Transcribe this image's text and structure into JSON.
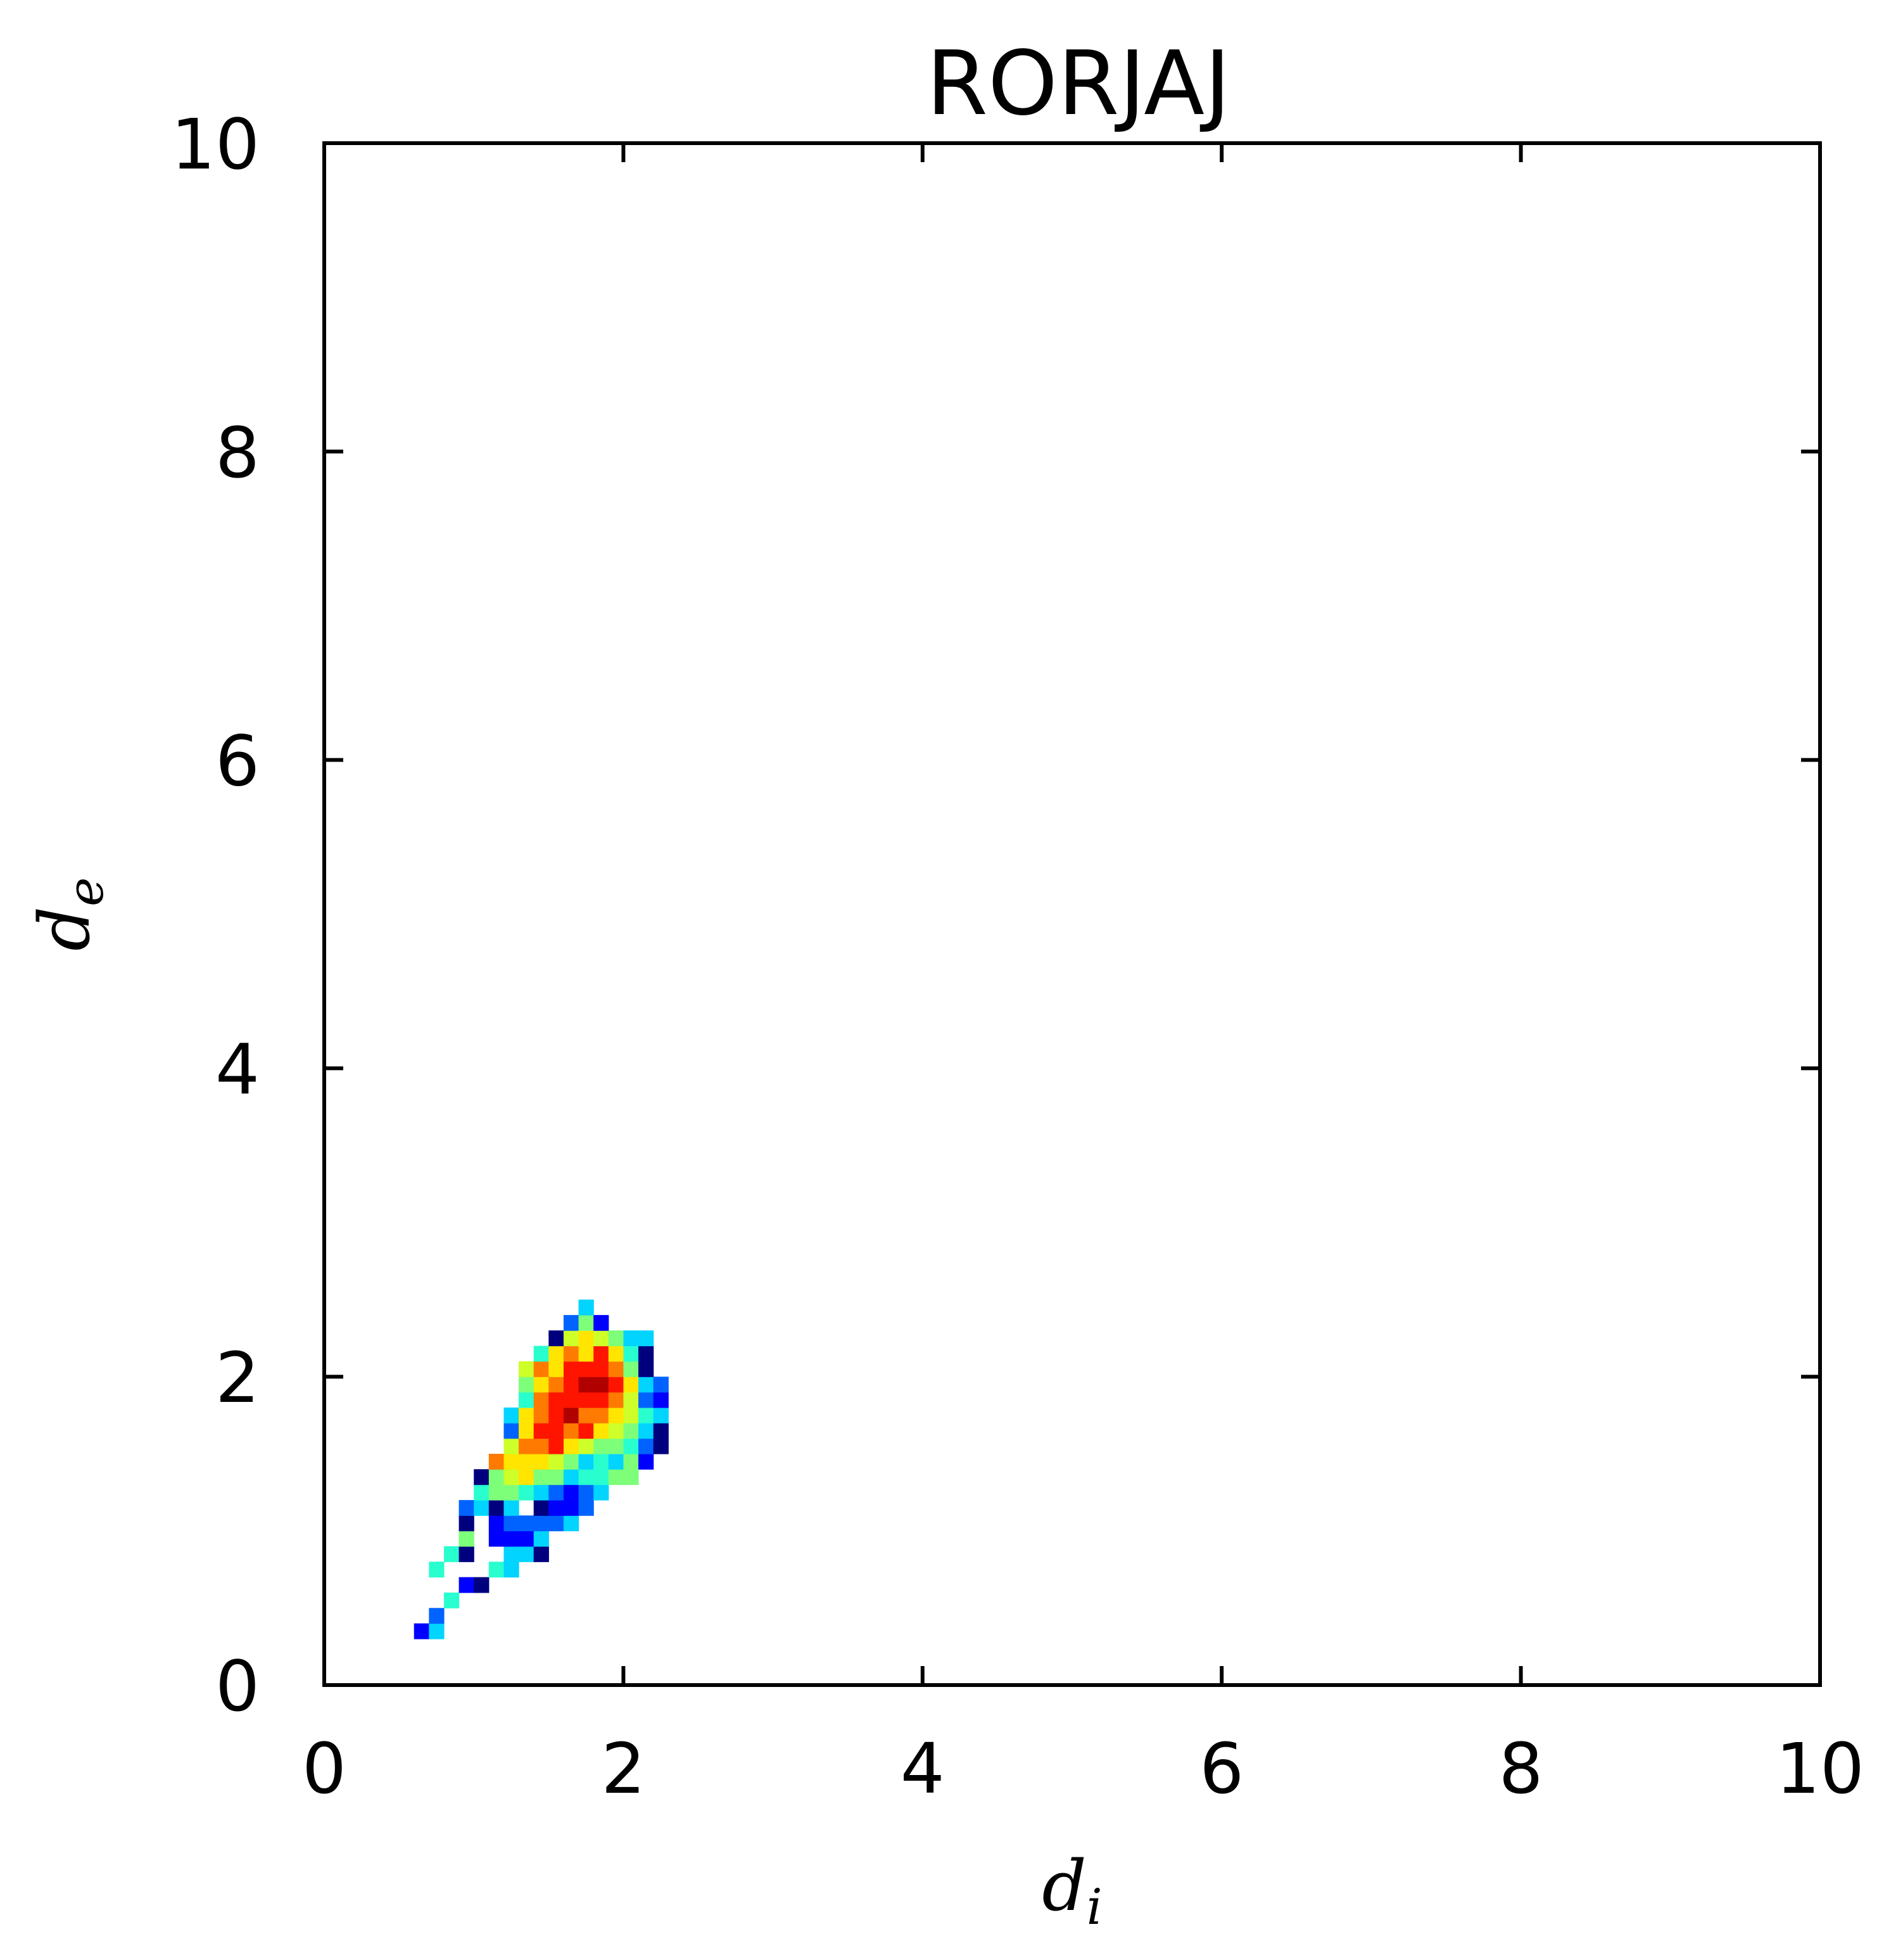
{
  "chart_data": {
    "type": "heatmap",
    "title": "RORJAJ",
    "xlabel": "d",
    "xlabel_sub": "i",
    "ylabel": "d",
    "ylabel_sub": "e",
    "xlim": [
      0,
      10
    ],
    "ylim": [
      0,
      10
    ],
    "xticks": [
      "0",
      "2",
      "4",
      "6",
      "8",
      "10"
    ],
    "yticks": [
      "0",
      "2",
      "4",
      "6",
      "8",
      "10"
    ],
    "grid": false,
    "colormap": "jet",
    "bin_size": 0.1,
    "colors": {
      "1": "#00007f",
      "2": "#0000ff",
      "3": "#0063ff",
      "4": "#00d4ff",
      "5": "#29ffce",
      "6": "#7dff7a",
      "7": "#ceff29",
      "8": "#ffe500",
      "9": "#ff7a00",
      "10": "#ff1400",
      "11": "#b00000"
    },
    "cells": [
      [
        0.6,
        0.3,
        2
      ],
      [
        0.7,
        0.3,
        4
      ],
      [
        0.7,
        0.4,
        3
      ],
      [
        0.8,
        0.5,
        5
      ],
      [
        0.9,
        0.6,
        2
      ],
      [
        1.0,
        0.6,
        1
      ],
      [
        0.7,
        0.7,
        5
      ],
      [
        1.1,
        0.7,
        5
      ],
      [
        1.2,
        0.7,
        4
      ],
      [
        0.8,
        0.8,
        5
      ],
      [
        0.9,
        0.8,
        1
      ],
      [
        1.2,
        0.8,
        4
      ],
      [
        1.3,
        0.8,
        4
      ],
      [
        1.4,
        0.8,
        1
      ],
      [
        0.9,
        0.9,
        6
      ],
      [
        1.1,
        0.9,
        2
      ],
      [
        1.2,
        0.9,
        2
      ],
      [
        1.3,
        0.9,
        2
      ],
      [
        1.4,
        0.9,
        4
      ],
      [
        0.9,
        1.0,
        1
      ],
      [
        1.1,
        1.0,
        2
      ],
      [
        1.2,
        1.0,
        3
      ],
      [
        1.3,
        1.0,
        3
      ],
      [
        1.4,
        1.0,
        3
      ],
      [
        1.5,
        1.0,
        3
      ],
      [
        1.6,
        1.0,
        4
      ],
      [
        0.9,
        1.1,
        3
      ],
      [
        1.0,
        1.1,
        4
      ],
      [
        1.1,
        1.1,
        1
      ],
      [
        1.2,
        1.1,
        4
      ],
      [
        1.4,
        1.1,
        1
      ],
      [
        1.5,
        1.1,
        2
      ],
      [
        1.6,
        1.1,
        2
      ],
      [
        1.7,
        1.1,
        3
      ],
      [
        1.0,
        1.2,
        5
      ],
      [
        1.1,
        1.2,
        6
      ],
      [
        1.2,
        1.2,
        6
      ],
      [
        1.3,
        1.2,
        5
      ],
      [
        1.4,
        1.2,
        4
      ],
      [
        1.5,
        1.2,
        3
      ],
      [
        1.6,
        1.2,
        2
      ],
      [
        1.7,
        1.2,
        3
      ],
      [
        1.8,
        1.2,
        4
      ],
      [
        1.0,
        1.3,
        1
      ],
      [
        1.1,
        1.3,
        6
      ],
      [
        1.2,
        1.3,
        7
      ],
      [
        1.3,
        1.3,
        8
      ],
      [
        1.4,
        1.3,
        6
      ],
      [
        1.5,
        1.3,
        6
      ],
      [
        1.6,
        1.3,
        4
      ],
      [
        1.7,
        1.3,
        5
      ],
      [
        1.8,
        1.3,
        5
      ],
      [
        1.9,
        1.3,
        6
      ],
      [
        2.0,
        1.3,
        6
      ],
      [
        1.1,
        1.4,
        9
      ],
      [
        1.2,
        1.4,
        8
      ],
      [
        1.3,
        1.4,
        8
      ],
      [
        1.4,
        1.4,
        8
      ],
      [
        1.5,
        1.4,
        7
      ],
      [
        1.6,
        1.4,
        6
      ],
      [
        1.7,
        1.4,
        4
      ],
      [
        1.8,
        1.4,
        5
      ],
      [
        1.9,
        1.4,
        4
      ],
      [
        2.0,
        1.4,
        6
      ],
      [
        2.1,
        1.4,
        2
      ],
      [
        1.2,
        1.5,
        7
      ],
      [
        1.3,
        1.5,
        9
      ],
      [
        1.4,
        1.5,
        9
      ],
      [
        1.5,
        1.5,
        10
      ],
      [
        1.6,
        1.5,
        8
      ],
      [
        1.7,
        1.5,
        7
      ],
      [
        1.8,
        1.5,
        6
      ],
      [
        1.9,
        1.5,
        6
      ],
      [
        2.0,
        1.5,
        5
      ],
      [
        2.1,
        1.5,
        3
      ],
      [
        2.2,
        1.5,
        1
      ],
      [
        1.2,
        1.6,
        3
      ],
      [
        1.3,
        1.6,
        8
      ],
      [
        1.4,
        1.6,
        10
      ],
      [
        1.5,
        1.6,
        10
      ],
      [
        1.6,
        1.6,
        9
      ],
      [
        1.7,
        1.6,
        10
      ],
      [
        1.8,
        1.6,
        8
      ],
      [
        1.9,
        1.6,
        7
      ],
      [
        2.0,
        1.6,
        6
      ],
      [
        2.1,
        1.6,
        4
      ],
      [
        2.2,
        1.6,
        1
      ],
      [
        1.2,
        1.7,
        4
      ],
      [
        1.3,
        1.7,
        8
      ],
      [
        1.4,
        1.7,
        9
      ],
      [
        1.5,
        1.7,
        10
      ],
      [
        1.6,
        1.7,
        11
      ],
      [
        1.7,
        1.7,
        9
      ],
      [
        1.8,
        1.7,
        9
      ],
      [
        1.9,
        1.7,
        8
      ],
      [
        2.0,
        1.7,
        7
      ],
      [
        2.1,
        1.7,
        5
      ],
      [
        2.2,
        1.7,
        4
      ],
      [
        1.3,
        1.8,
        5
      ],
      [
        1.4,
        1.8,
        9
      ],
      [
        1.5,
        1.8,
        10
      ],
      [
        1.6,
        1.8,
        10
      ],
      [
        1.7,
        1.8,
        10
      ],
      [
        1.8,
        1.8,
        10
      ],
      [
        1.9,
        1.8,
        9
      ],
      [
        2.0,
        1.8,
        7
      ],
      [
        2.1,
        1.8,
        3
      ],
      [
        2.2,
        1.8,
        2
      ],
      [
        1.3,
        1.9,
        6
      ],
      [
        1.4,
        1.9,
        8
      ],
      [
        1.5,
        1.9,
        9
      ],
      [
        1.6,
        1.9,
        10
      ],
      [
        1.7,
        1.9,
        11
      ],
      [
        1.8,
        1.9,
        11
      ],
      [
        1.9,
        1.9,
        10
      ],
      [
        2.0,
        1.9,
        8
      ],
      [
        2.1,
        1.9,
        4
      ],
      [
        2.2,
        1.9,
        3
      ],
      [
        1.3,
        2.0,
        7
      ],
      [
        1.4,
        2.0,
        9
      ],
      [
        1.5,
        2.0,
        8
      ],
      [
        1.6,
        2.0,
        10
      ],
      [
        1.7,
        2.0,
        10
      ],
      [
        1.8,
        2.0,
        10
      ],
      [
        1.9,
        2.0,
        9
      ],
      [
        2.0,
        2.0,
        6
      ],
      [
        2.1,
        2.0,
        1
      ],
      [
        1.4,
        2.1,
        5
      ],
      [
        1.5,
        2.1,
        8
      ],
      [
        1.6,
        2.1,
        9
      ],
      [
        1.7,
        2.1,
        8
      ],
      [
        1.8,
        2.1,
        10
      ],
      [
        1.9,
        2.1,
        8
      ],
      [
        2.0,
        2.1,
        5
      ],
      [
        2.1,
        2.1,
        1
      ],
      [
        1.5,
        2.2,
        1
      ],
      [
        1.6,
        2.2,
        7
      ],
      [
        1.7,
        2.2,
        8
      ],
      [
        1.8,
        2.2,
        7
      ],
      [
        1.9,
        2.2,
        6
      ],
      [
        2.0,
        2.2,
        4
      ],
      [
        2.1,
        2.2,
        4
      ],
      [
        1.6,
        2.3,
        3
      ],
      [
        1.7,
        2.3,
        6
      ],
      [
        1.8,
        2.3,
        2
      ],
      [
        1.7,
        2.4,
        4
      ]
    ]
  }
}
